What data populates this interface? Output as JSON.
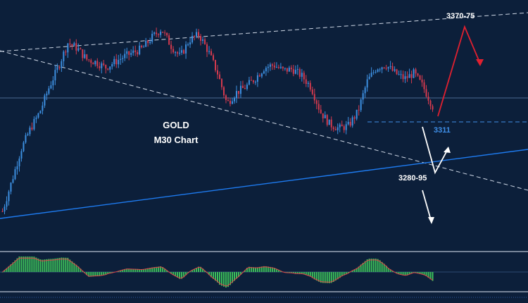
{
  "chart_data": {
    "type": "candlestick",
    "title": "GOLD",
    "subtitle": "M30 Chart",
    "levels": {
      "target_high": "3370-75",
      "support_mid": "3311",
      "target_low": "3280-95"
    },
    "colors": {
      "background": "#0c1f3a",
      "bull_candle": "#3d8fe0",
      "bear_candle": "#d43a4e",
      "upper_channel": "#cfd8e6",
      "lower_trendline": "#1e7bf0",
      "red_arrow": "#e02030",
      "white_arrow": "#ffffff",
      "level_3311": "#3f8fe8",
      "osc_fill": "#3cbf5a",
      "osc_signal": "#e0404a"
    },
    "ohlc_close_path": [
      3240,
      3262,
      3285,
      3300,
      3312,
      3330,
      3345,
      3362,
      3358,
      3350,
      3348,
      3344,
      3348,
      3352,
      3355,
      3358,
      3366,
      3372,
      3360,
      3352,
      3364,
      3368,
      3356,
      3340,
      3318,
      3326,
      3330,
      3336,
      3344,
      3346,
      3342,
      3343,
      3338,
      3330,
      3312,
      3303,
      3300,
      3302,
      3312,
      3334,
      3344,
      3346,
      3340,
      3336,
      3340,
      3330,
      3316
    ],
    "indicator": "oscillator"
  }
}
